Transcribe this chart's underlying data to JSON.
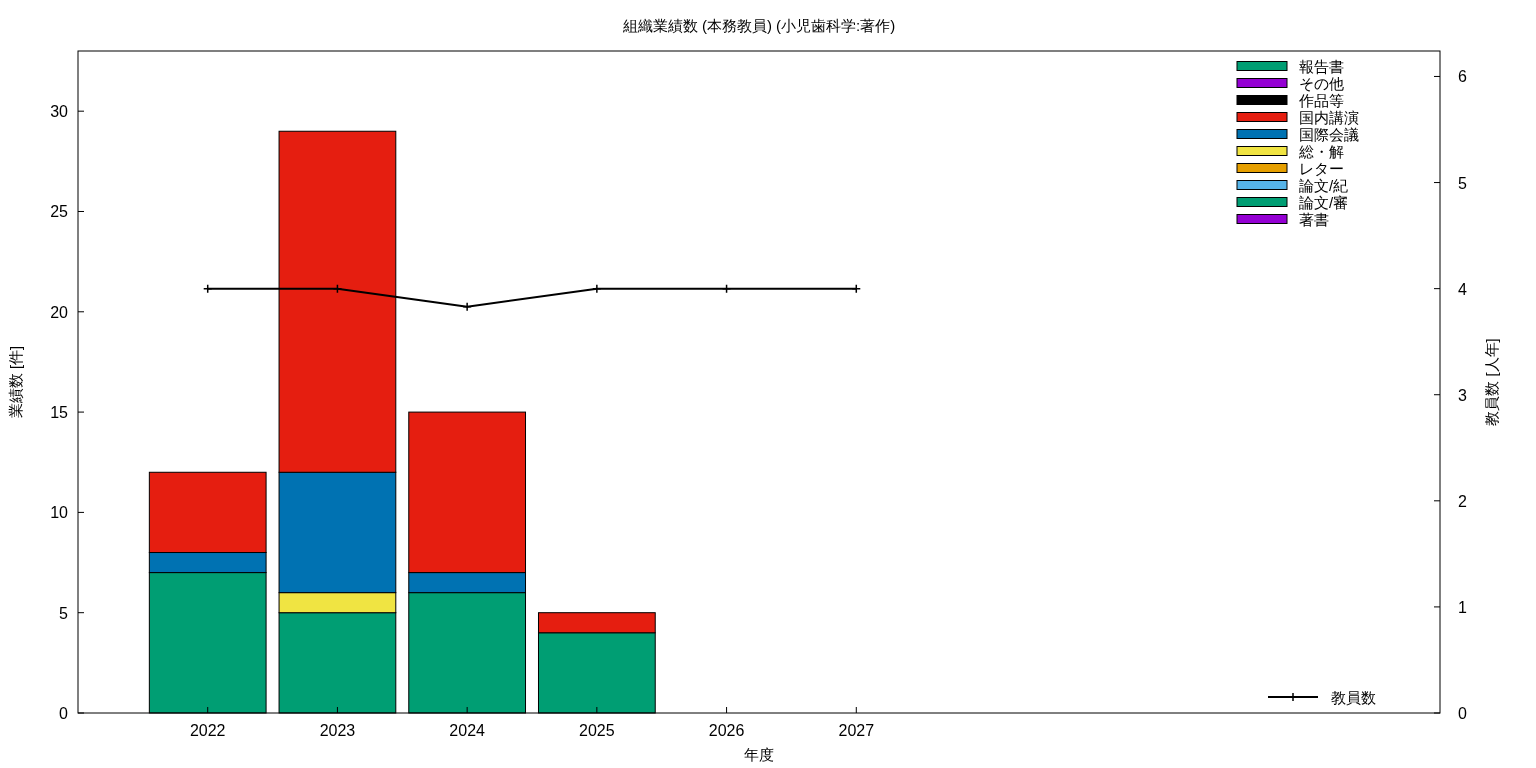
{
  "chart_data": {
    "type": "bar",
    "title": "組織業績数 (本務教員) (小児歯科学:著作)",
    "xlabel": "年度",
    "ylabel": "業績数 [件]",
    "y2label": "教員数 [人年]",
    "x": [
      2022,
      2023,
      2024,
      2025,
      2026,
      2027
    ],
    "xlim": [
      2021,
      2031.5
    ],
    "xticks": [
      2022,
      2023,
      2024,
      2025,
      2026,
      2027
    ],
    "ylim": [
      0,
      33
    ],
    "yticks": [
      0,
      5,
      10,
      15,
      20,
      25,
      30
    ],
    "y2lim": [
      0,
      6.24
    ],
    "y2ticks": [
      0,
      1,
      2,
      3,
      4,
      5,
      6
    ],
    "stacked": true,
    "legend": "right",
    "series": [
      {
        "name": "著書",
        "color": "#9400d3",
        "values": [
          0,
          0,
          0,
          0,
          0,
          0
        ]
      },
      {
        "name": "論文/審",
        "color": "#009e73",
        "values": [
          7,
          5,
          6,
          4,
          0,
          0
        ]
      },
      {
        "name": "論文/紀",
        "color": "#56b4e9",
        "values": [
          0,
          0,
          0,
          0,
          0,
          0
        ]
      },
      {
        "name": "レター",
        "color": "#e69f00",
        "values": [
          0,
          0,
          0,
          0,
          0,
          0
        ]
      },
      {
        "name": "総・解",
        "color": "#f0e442",
        "values": [
          0,
          1,
          0,
          0,
          0,
          0
        ]
      },
      {
        "name": "国際会議",
        "color": "#0072b2",
        "values": [
          1,
          6,
          1,
          0,
          0,
          0
        ]
      },
      {
        "name": "国内講演",
        "color": "#e51e10",
        "values": [
          4,
          17,
          8,
          1,
          0,
          0
        ]
      },
      {
        "name": "作品等",
        "color": "#000000",
        "values": [
          0,
          0,
          0,
          0,
          0,
          0
        ]
      },
      {
        "name": "その他",
        "color": "#9400d3",
        "values": [
          0,
          0,
          0,
          0,
          0,
          0
        ]
      },
      {
        "name": "報告書",
        "color": "#009e73",
        "values": [
          0,
          0,
          0,
          0,
          0,
          0
        ]
      },
      {
        "name": "教員数",
        "type": "line",
        "axis": "y2",
        "marker": "cross",
        "color": "#000000",
        "values": [
          4,
          4,
          3.83,
          4,
          4,
          4
        ]
      }
    ]
  }
}
